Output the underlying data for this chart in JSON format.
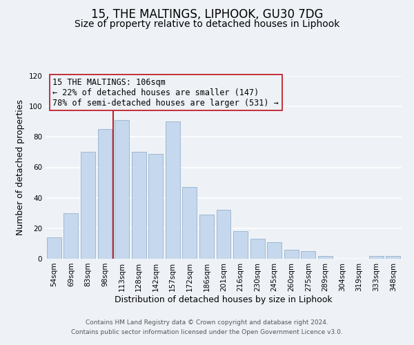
{
  "title": "15, THE MALTINGS, LIPHOOK, GU30 7DG",
  "subtitle": "Size of property relative to detached houses in Liphook",
  "xlabel": "Distribution of detached houses by size in Liphook",
  "ylabel": "Number of detached properties",
  "bar_labels": [
    "54sqm",
    "69sqm",
    "83sqm",
    "98sqm",
    "113sqm",
    "128sqm",
    "142sqm",
    "157sqm",
    "172sqm",
    "186sqm",
    "201sqm",
    "216sqm",
    "230sqm",
    "245sqm",
    "260sqm",
    "275sqm",
    "289sqm",
    "304sqm",
    "319sqm",
    "333sqm",
    "348sqm"
  ],
  "bar_values": [
    14,
    30,
    70,
    85,
    91,
    70,
    69,
    90,
    47,
    29,
    32,
    18,
    13,
    11,
    6,
    5,
    2,
    0,
    0,
    2,
    2
  ],
  "bar_color": "#c5d8ed",
  "bar_edge_color": "#a0b8d0",
  "vline_x": 3.5,
  "vline_color": "#c0202a",
  "ylim": [
    0,
    120
  ],
  "yticks": [
    0,
    20,
    40,
    60,
    80,
    100,
    120
  ],
  "annotation_text": "15 THE MALTINGS: 106sqm\n← 22% of detached houses are smaller (147)\n78% of semi-detached houses are larger (531) →",
  "annotation_box_edgecolor": "#c0202a",
  "footer_line1": "Contains HM Land Registry data © Crown copyright and database right 2024.",
  "footer_line2": "Contains public sector information licensed under the Open Government Licence v3.0.",
  "background_color": "#eef2f7",
  "grid_color": "#ffffff",
  "title_fontsize": 12,
  "subtitle_fontsize": 10,
  "axis_label_fontsize": 9,
  "tick_fontsize": 7.5,
  "annotation_fontsize": 8.5,
  "footer_fontsize": 6.5
}
